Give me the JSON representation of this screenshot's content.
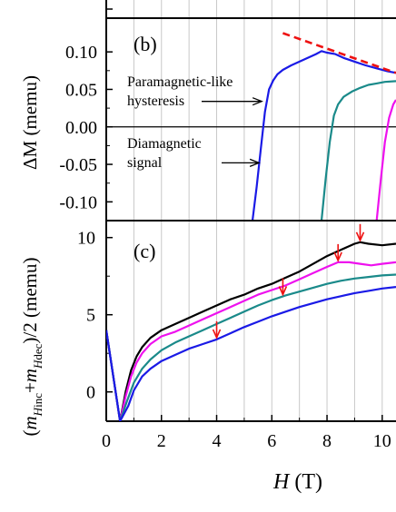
{
  "chart_data": [
    {
      "panel": "a",
      "type": "line",
      "note": "top panel cropped; only lower edge visible",
      "xlim": [
        0,
        10.5
      ]
    },
    {
      "panel": "b",
      "label": "(b)",
      "type": "line",
      "ylabel": "ΔM (memu)",
      "ylim": [
        -0.125,
        0.145
      ],
      "xlim": [
        0,
        10.5
      ],
      "yticks": [
        "0.10",
        "0.05",
        "0.00",
        "-0.05",
        "-0.10"
      ],
      "ytick_values": [
        0.1,
        0.05,
        0.0,
        -0.05,
        -0.1
      ],
      "vertical_grid_x": [
        1,
        2,
        3,
        4,
        5,
        6,
        7,
        8,
        9,
        10
      ],
      "annotations": [
        {
          "text_lines": [
            "Paramagnetic-like",
            "hysteresis"
          ],
          "arrow_to": [
            5.7,
            0.034
          ]
        },
        {
          "text_lines": [
            "Diamagnetic",
            "signal"
          ],
          "arrow_to": [
            5.6,
            -0.048
          ]
        }
      ],
      "dashed_fit": {
        "x": [
          6.4,
          10.5
        ],
        "y": [
          0.125,
          0.072
        ],
        "color": "#ee1111"
      },
      "series": [
        {
          "color": "#1a1ae6",
          "x": [
            5.3,
            5.45,
            5.6,
            5.75,
            5.9,
            6.05,
            6.2,
            6.4,
            6.7,
            7.0,
            7.3,
            7.6,
            7.8,
            8.0,
            8.3,
            8.6,
            9.0,
            9.4,
            9.8,
            10.2,
            10.5
          ],
          "y": [
            -0.125,
            -0.08,
            -0.03,
            0.02,
            0.05,
            0.062,
            0.07,
            0.076,
            0.082,
            0.087,
            0.092,
            0.097,
            0.101,
            0.099,
            0.097,
            0.092,
            0.087,
            0.082,
            0.078,
            0.074,
            0.072
          ]
        },
        {
          "color": "#1a8a8a",
          "x": [
            7.8,
            7.95,
            8.1,
            8.25,
            8.4,
            8.6,
            8.9,
            9.2,
            9.5,
            9.8,
            10.1,
            10.5
          ],
          "y": [
            -0.125,
            -0.07,
            -0.02,
            0.015,
            0.03,
            0.04,
            0.047,
            0.052,
            0.056,
            0.058,
            0.06,
            0.061
          ]
        },
        {
          "color": "#ee11ee",
          "x": [
            9.8,
            9.95,
            10.1,
            10.25,
            10.4,
            10.5
          ],
          "y": [
            -0.125,
            -0.07,
            -0.02,
            0.012,
            0.03,
            0.036
          ]
        }
      ]
    },
    {
      "panel": "c",
      "label": "(c)",
      "type": "line",
      "ylabel": "(m_Hinc + m_Hdec)/2 (memu)",
      "xlabel": "H (T)",
      "xlim": [
        0,
        10.5
      ],
      "ylim": [
        -1.9,
        11.1
      ],
      "xticks": [
        "0",
        "2",
        "4",
        "6",
        "8",
        "10"
      ],
      "xtick_values": [
        0,
        2,
        4,
        6,
        8,
        10
      ],
      "yticks": [
        "10",
        "5",
        "0"
      ],
      "ytick_values": [
        10,
        5,
        0
      ],
      "vertical_grid_x": [
        1,
        2,
        3,
        4,
        5,
        6,
        7,
        8,
        9,
        10
      ],
      "arrows_x": [
        4.0,
        6.4,
        8.4,
        9.2
      ],
      "arrow_color": "#ee1111",
      "series": [
        {
          "color": "#000000",
          "x": [
            0,
            0.5,
            0.7,
            0.9,
            1.1,
            1.3,
            1.6,
            2.0,
            2.5,
            3.0,
            3.5,
            4.0,
            4.5,
            5.0,
            5.5,
            6.0,
            6.5,
            7.0,
            7.5,
            8.0,
            8.5,
            9.0,
            9.2,
            9.5,
            10.0,
            10.5
          ],
          "y": [
            4.0,
            -1.9,
            0.0,
            1.4,
            2.3,
            2.9,
            3.5,
            4.0,
            4.4,
            4.8,
            5.2,
            5.6,
            6.0,
            6.3,
            6.7,
            7.0,
            7.4,
            7.8,
            8.3,
            8.8,
            9.2,
            9.6,
            9.7,
            9.6,
            9.5,
            9.6
          ]
        },
        {
          "color": "#ee11ee",
          "x": [
            0,
            0.5,
            0.7,
            0.9,
            1.1,
            1.3,
            1.6,
            2.0,
            2.5,
            3.0,
            3.5,
            4.0,
            4.5,
            5.0,
            5.5,
            6.0,
            6.5,
            7.0,
            7.5,
            8.0,
            8.4,
            8.8,
            9.2,
            9.6,
            10.0,
            10.5
          ],
          "y": [
            4.0,
            -1.9,
            -0.3,
            1.0,
            1.9,
            2.5,
            3.1,
            3.6,
            3.9,
            4.3,
            4.7,
            5.1,
            5.5,
            5.9,
            6.3,
            6.6,
            6.9,
            7.3,
            7.7,
            8.1,
            8.4,
            8.4,
            8.3,
            8.2,
            8.3,
            8.4
          ]
        },
        {
          "color": "#1a8a8a",
          "x": [
            0,
            0.5,
            0.75,
            1.0,
            1.3,
            1.6,
            2.0,
            2.5,
            3.0,
            3.5,
            4.0,
            4.5,
            5.0,
            5.5,
            6.0,
            6.5,
            7.0,
            7.5,
            8.0,
            8.5,
            9.0,
            9.5,
            10.0,
            10.5
          ],
          "y": [
            4.0,
            -1.9,
            -0.6,
            0.6,
            1.5,
            2.1,
            2.7,
            3.2,
            3.6,
            4.0,
            4.4,
            4.8,
            5.2,
            5.6,
            5.95,
            6.25,
            6.5,
            6.75,
            7.0,
            7.2,
            7.35,
            7.45,
            7.55,
            7.6
          ]
        },
        {
          "color": "#1a1ae6",
          "x": [
            0,
            0.5,
            0.8,
            1.0,
            1.3,
            1.6,
            2.0,
            2.5,
            3.0,
            3.5,
            4.0,
            4.5,
            5.0,
            5.5,
            6.0,
            6.5,
            7.0,
            7.5,
            8.0,
            8.5,
            9.0,
            9.5,
            10.0,
            10.5
          ],
          "y": [
            4.0,
            -1.9,
            -0.9,
            0.1,
            1.0,
            1.5,
            2.0,
            2.4,
            2.8,
            3.1,
            3.4,
            3.8,
            4.2,
            4.55,
            4.9,
            5.2,
            5.5,
            5.75,
            6.0,
            6.2,
            6.4,
            6.55,
            6.7,
            6.8
          ]
        }
      ]
    }
  ]
}
